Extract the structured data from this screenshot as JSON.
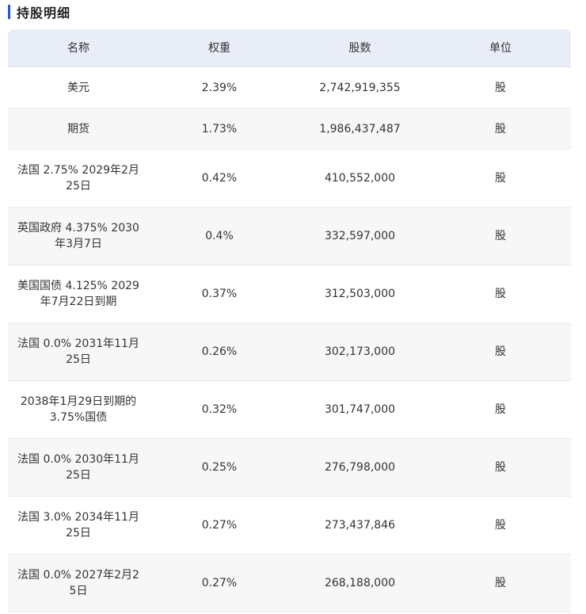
{
  "section": {
    "title": "持股明细",
    "accent_color": "#1f5bc6"
  },
  "table": {
    "columns": [
      "名称",
      "权重",
      "股数",
      "单位"
    ],
    "rows": [
      {
        "name": "美元",
        "weight": "2.39%",
        "shares": "2,742,919,355",
        "unit": "股"
      },
      {
        "name": "期货",
        "weight": "1.73%",
        "shares": "1,986,437,487",
        "unit": "股"
      },
      {
        "name": "法国 2.75% 2029年2月25日",
        "weight": "0.42%",
        "shares": "410,552,000",
        "unit": "股"
      },
      {
        "name": "英国政府 4.375% 2030年3月7日",
        "weight": "0.4%",
        "shares": "332,597,000",
        "unit": "股"
      },
      {
        "name": "美国国债 4.125% 2029年7月22日到期",
        "weight": "0.37%",
        "shares": "312,503,000",
        "unit": "股"
      },
      {
        "name": "法国 0.0% 2031年11月25日",
        "weight": "0.26%",
        "shares": "302,173,000",
        "unit": "股"
      },
      {
        "name": "2038年1月29日到期的3.75%国债",
        "weight": "0.32%",
        "shares": "301,747,000",
        "unit": "股"
      },
      {
        "name": "法国 0.0% 2030年11月25日",
        "weight": "0.25%",
        "shares": "276,798,000",
        "unit": "股"
      },
      {
        "name": "法国 3.0% 2034年11月25日",
        "weight": "0.27%",
        "shares": "273,437,846",
        "unit": "股"
      },
      {
        "name": "法国 0.0% 2027年2月25日",
        "weight": "0.27%",
        "shares": "268,188,000",
        "unit": "股"
      }
    ]
  }
}
